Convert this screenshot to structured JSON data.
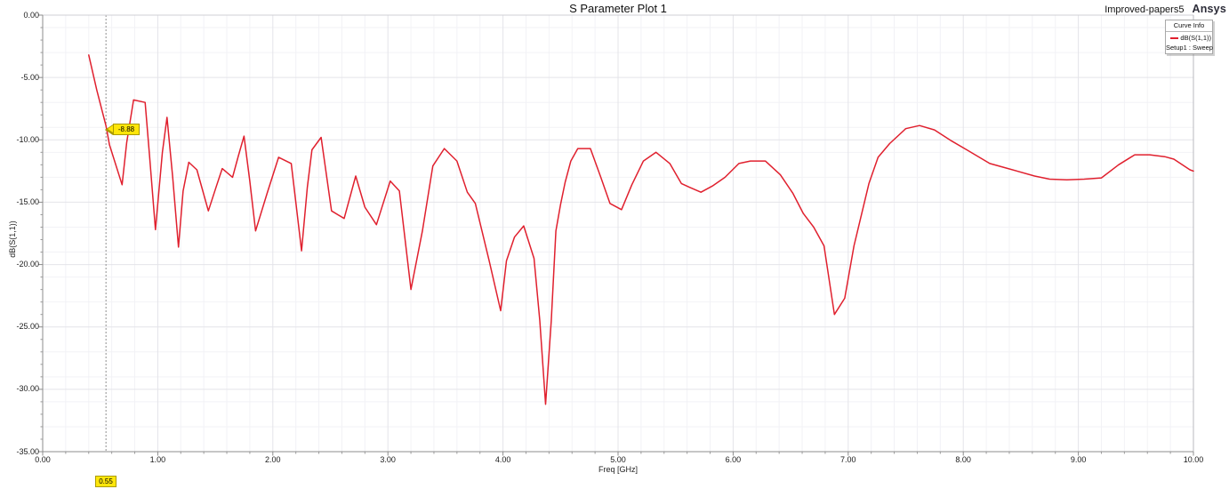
{
  "header": {
    "project": "Improved-papers5",
    "logo": "Ansys"
  },
  "chart_data": {
    "type": "line",
    "title": "S Parameter Plot 1",
    "xlabel": "Freq [GHz]",
    "ylabel": "dB(S(1,1))",
    "xlim": [
      0,
      10
    ],
    "ylim": [
      -35,
      0
    ],
    "grid": true,
    "x_ticks": [
      {
        "value": 0,
        "label": "0.00"
      },
      {
        "value": 1,
        "label": "1.00"
      },
      {
        "value": 2,
        "label": "2.00"
      },
      {
        "value": 3,
        "label": "3.00"
      },
      {
        "value": 4,
        "label": "4.00"
      },
      {
        "value": 5,
        "label": "5.00"
      },
      {
        "value": 6,
        "label": "6.00"
      },
      {
        "value": 7,
        "label": "7.00"
      },
      {
        "value": 8,
        "label": "8.00"
      },
      {
        "value": 9,
        "label": "9.00"
      },
      {
        "value": 10,
        "label": "10.00"
      }
    ],
    "y_ticks": [
      {
        "value": 0,
        "label": "0.00"
      },
      {
        "value": -5,
        "label": "-5.00"
      },
      {
        "value": -10,
        "label": "-10.00"
      },
      {
        "value": -15,
        "label": "-15.00"
      },
      {
        "value": -20,
        "label": "-20.00"
      },
      {
        "value": -25,
        "label": "-25.00"
      },
      {
        "value": -30,
        "label": "-30.00"
      },
      {
        "value": -35,
        "label": "-35.00"
      }
    ],
    "legend": {
      "position": "top-right",
      "header": "Curve Info",
      "entries": [
        {
          "label": "dB(S(1,1))",
          "color": "#e0202e",
          "sub": "Setup1 : Sweep"
        }
      ]
    },
    "marker": {
      "freq": 0.55,
      "value": -8.88,
      "callout_label": "-8.88",
      "axis_label": "0.55",
      "color": "#ffe60a"
    },
    "series": [
      {
        "name": "dB(S(1,1))",
        "color": "#e0202e",
        "points": [
          [
            0.4,
            -3.2
          ],
          [
            0.47,
            -6.0
          ],
          [
            0.55,
            -8.88
          ],
          [
            0.58,
            -10.4
          ],
          [
            0.69,
            -13.6
          ],
          [
            0.73,
            -10.2
          ],
          [
            0.79,
            -6.8
          ],
          [
            0.89,
            -7.0
          ],
          [
            0.93,
            -11.4
          ],
          [
            0.98,
            -17.2
          ],
          [
            1.04,
            -11.0
          ],
          [
            1.08,
            -8.2
          ],
          [
            1.13,
            -13.0
          ],
          [
            1.18,
            -18.6
          ],
          [
            1.22,
            -14.1
          ],
          [
            1.27,
            -11.8
          ],
          [
            1.34,
            -12.4
          ],
          [
            1.44,
            -15.7
          ],
          [
            1.51,
            -13.7
          ],
          [
            1.56,
            -12.3
          ],
          [
            1.65,
            -13.0
          ],
          [
            1.7,
            -11.3
          ],
          [
            1.75,
            -9.7
          ],
          [
            1.8,
            -13.3
          ],
          [
            1.85,
            -17.3
          ],
          [
            1.95,
            -14.3
          ],
          [
            2.05,
            -11.4
          ],
          [
            2.16,
            -11.9
          ],
          [
            2.25,
            -18.9
          ],
          [
            2.3,
            -13.8
          ],
          [
            2.34,
            -10.8
          ],
          [
            2.42,
            -9.8
          ],
          [
            2.51,
            -15.7
          ],
          [
            2.62,
            -16.3
          ],
          [
            2.72,
            -12.9
          ],
          [
            2.8,
            -15.4
          ],
          [
            2.9,
            -16.8
          ],
          [
            3.02,
            -13.3
          ],
          [
            3.1,
            -14.1
          ],
          [
            3.2,
            -22.0
          ],
          [
            3.3,
            -17.3
          ],
          [
            3.39,
            -12.1
          ],
          [
            3.49,
            -10.7
          ],
          [
            3.6,
            -11.7
          ],
          [
            3.69,
            -14.2
          ],
          [
            3.76,
            -15.1
          ],
          [
            3.88,
            -19.7
          ],
          [
            3.98,
            -23.7
          ],
          [
            4.03,
            -19.7
          ],
          [
            4.1,
            -17.8
          ],
          [
            4.18,
            -16.9
          ],
          [
            4.27,
            -19.5
          ],
          [
            4.32,
            -24.5
          ],
          [
            4.37,
            -31.2
          ],
          [
            4.42,
            -24.5
          ],
          [
            4.46,
            -17.3
          ],
          [
            4.5,
            -15.2
          ],
          [
            4.54,
            -13.4
          ],
          [
            4.59,
            -11.7
          ],
          [
            4.65,
            -10.7
          ],
          [
            4.76,
            -10.7
          ],
          [
            4.85,
            -13.0
          ],
          [
            4.93,
            -15.1
          ],
          [
            5.03,
            -15.6
          ],
          [
            5.12,
            -13.6
          ],
          [
            5.22,
            -11.7
          ],
          [
            5.33,
            -11.0
          ],
          [
            5.45,
            -11.9
          ],
          [
            5.55,
            -13.5
          ],
          [
            5.62,
            -13.8
          ],
          [
            5.72,
            -14.2
          ],
          [
            5.82,
            -13.7
          ],
          [
            5.93,
            -13.0
          ],
          [
            6.05,
            -11.9
          ],
          [
            6.15,
            -11.7
          ],
          [
            6.28,
            -11.7
          ],
          [
            6.41,
            -12.8
          ],
          [
            6.52,
            -14.3
          ],
          [
            6.61,
            -15.9
          ],
          [
            6.7,
            -17.0
          ],
          [
            6.79,
            -18.5
          ],
          [
            6.88,
            -24.0
          ],
          [
            6.97,
            -22.7
          ],
          [
            7.05,
            -18.5
          ],
          [
            7.18,
            -13.5
          ],
          [
            7.26,
            -11.4
          ],
          [
            7.36,
            -10.3
          ],
          [
            7.5,
            -9.1
          ],
          [
            7.62,
            -8.85
          ],
          [
            7.75,
            -9.2
          ],
          [
            7.9,
            -10.1
          ],
          [
            8.03,
            -10.8
          ],
          [
            8.23,
            -11.9
          ],
          [
            8.39,
            -12.3
          ],
          [
            8.62,
            -12.9
          ],
          [
            8.75,
            -13.15
          ],
          [
            8.9,
            -13.2
          ],
          [
            9.05,
            -13.15
          ],
          [
            9.2,
            -13.05
          ],
          [
            9.35,
            -12.0
          ],
          [
            9.49,
            -11.2
          ],
          [
            9.62,
            -11.2
          ],
          [
            9.75,
            -11.35
          ],
          [
            9.83,
            -11.55
          ],
          [
            9.97,
            -12.4
          ],
          [
            10.0,
            -12.5
          ]
        ]
      }
    ]
  }
}
